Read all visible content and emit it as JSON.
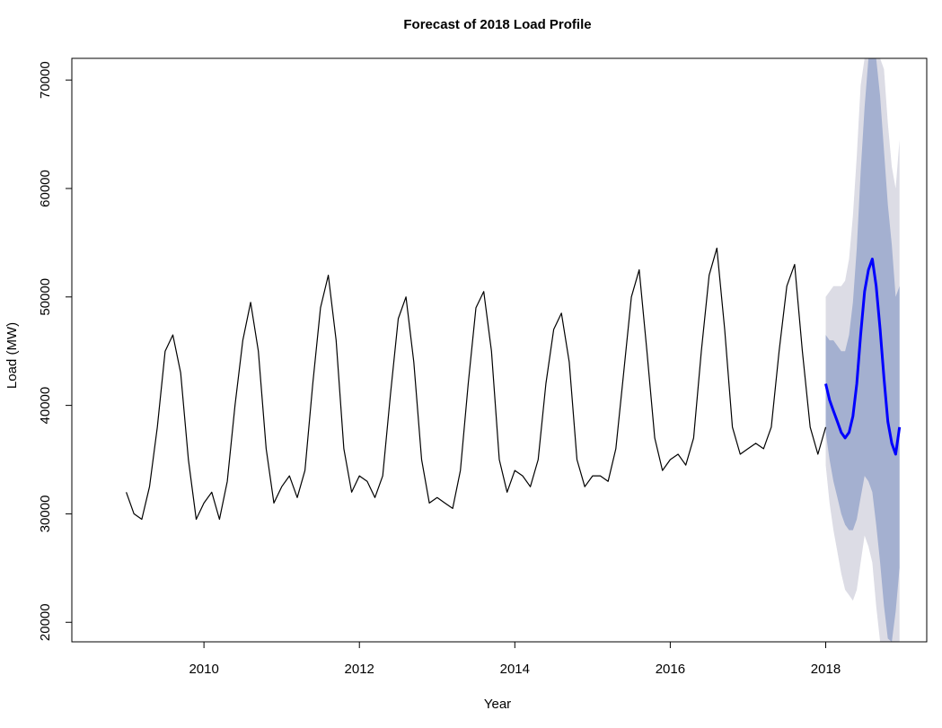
{
  "chart_data": {
    "type": "line",
    "title": "Forecast of 2018 Load Profile",
    "xlabel": "Year",
    "ylabel": "Load (MW)",
    "xlim": [
      2008.3,
      2019.3
    ],
    "ylim": [
      18200,
      72000
    ],
    "x_ticks": [
      2010,
      2012,
      2014,
      2016,
      2018
    ],
    "y_ticks": [
      20000,
      30000,
      40000,
      50000,
      60000,
      70000
    ],
    "grid": false,
    "legend": "none",
    "series": [
      {
        "role": "historical",
        "color": "#000000",
        "x": [
          2009.0,
          2009.1,
          2009.2,
          2009.3,
          2009.4,
          2009.5,
          2009.6,
          2009.7,
          2009.8,
          2009.9,
          2010.0,
          2010.1,
          2010.2,
          2010.3,
          2010.4,
          2010.5,
          2010.6,
          2010.7,
          2010.8,
          2010.9,
          2011.0,
          2011.1,
          2011.2,
          2011.3,
          2011.4,
          2011.5,
          2011.6,
          2011.7,
          2011.8,
          2011.9,
          2012.0,
          2012.1,
          2012.2,
          2012.3,
          2012.4,
          2012.5,
          2012.6,
          2012.7,
          2012.8,
          2012.9,
          2013.0,
          2013.1,
          2013.2,
          2013.3,
          2013.4,
          2013.5,
          2013.6,
          2013.7,
          2013.8,
          2013.9,
          2014.0,
          2014.1,
          2014.2,
          2014.3,
          2014.4,
          2014.5,
          2014.6,
          2014.7,
          2014.8,
          2014.9,
          2015.0,
          2015.1,
          2015.2,
          2015.3,
          2015.4,
          2015.5,
          2015.6,
          2015.7,
          2015.8,
          2015.9,
          2016.0,
          2016.1,
          2016.2,
          2016.3,
          2016.4,
          2016.5,
          2016.6,
          2016.7,
          2016.8,
          2016.9,
          2017.0,
          2017.1,
          2017.2,
          2017.3,
          2017.4,
          2017.5,
          2017.6,
          2017.7,
          2017.8,
          2017.9,
          2018.0
        ],
        "y": [
          32000,
          30000,
          29500,
          32500,
          38000,
          45000,
          46500,
          43000,
          35000,
          29500,
          31000,
          32000,
          29500,
          33000,
          40000,
          46000,
          49500,
          45000,
          36000,
          31000,
          32500,
          33500,
          31500,
          34000,
          42000,
          49000,
          52000,
          46000,
          36000,
          32000,
          33500,
          33000,
          31500,
          33500,
          41000,
          48000,
          50000,
          44000,
          35000,
          31000,
          31500,
          31000,
          30500,
          34000,
          42000,
          49000,
          50500,
          45000,
          35000,
          32000,
          34000,
          33500,
          32500,
          35000,
          42000,
          47000,
          48500,
          44000,
          35000,
          32500,
          33500,
          33500,
          33000,
          36000,
          43000,
          50000,
          52500,
          45000,
          37000,
          34000,
          35000,
          35500,
          34500,
          37000,
          45000,
          52000,
          54500,
          47000,
          38000,
          35500,
          36000,
          36500,
          36000,
          38000,
          45000,
          51000,
          53000,
          45000,
          38000,
          35500,
          38000
        ]
      },
      {
        "role": "forecast",
        "color": "#0000ff",
        "x": [
          2018.0,
          2018.05,
          2018.1,
          2018.15,
          2018.2,
          2018.25,
          2018.3,
          2018.35,
          2018.4,
          2018.45,
          2018.5,
          2018.55,
          2018.6,
          2018.65,
          2018.7,
          2018.75,
          2018.8,
          2018.85,
          2018.9,
          2018.95
        ],
        "y": [
          42000,
          40500,
          39500,
          38500,
          37500,
          37000,
          37500,
          39000,
          42000,
          46500,
          50500,
          52500,
          53500,
          51000,
          47000,
          42500,
          38500,
          36500,
          35500,
          38000
        ]
      }
    ],
    "intervals": [
      {
        "level": "80%",
        "color": "#a4b0d0",
        "x": [
          2018.0,
          2018.05,
          2018.1,
          2018.15,
          2018.2,
          2018.25,
          2018.3,
          2018.35,
          2018.4,
          2018.45,
          2018.5,
          2018.55,
          2018.6,
          2018.65,
          2018.7,
          2018.75,
          2018.8,
          2018.85,
          2018.9,
          2018.95
        ],
        "lower": [
          37500,
          35000,
          33000,
          31500,
          30000,
          29000,
          28500,
          28500,
          29500,
          31500,
          33500,
          33000,
          32000,
          29000,
          25500,
          21500,
          18500,
          18200,
          21000,
          25000
        ],
        "upper": [
          46500,
          46000,
          46000,
          45500,
          45000,
          45000,
          46500,
          49500,
          54500,
          61500,
          67500,
          72000,
          72000,
          72000,
          68500,
          63500,
          58500,
          54800,
          50000,
          51000
        ]
      },
      {
        "level": "95%",
        "color": "#dcdce5",
        "x": [
          2018.0,
          2018.05,
          2018.1,
          2018.15,
          2018.2,
          2018.25,
          2018.3,
          2018.35,
          2018.4,
          2018.45,
          2018.5,
          2018.55,
          2018.6,
          2018.65,
          2018.7,
          2018.75,
          2018.8,
          2018.85,
          2018.9,
          2018.95
        ],
        "lower": [
          34500,
          31000,
          28500,
          26500,
          24500,
          23000,
          22500,
          22000,
          23000,
          25500,
          28000,
          27000,
          25500,
          21500,
          18200,
          18200,
          18200,
          18200,
          18200,
          18200
        ],
        "upper": [
          50000,
          50500,
          51000,
          51000,
          51000,
          51500,
          53500,
          57500,
          63000,
          69500,
          72000,
          72000,
          72000,
          72000,
          72000,
          71000,
          66000,
          62000,
          60000,
          64500
        ]
      }
    ]
  }
}
